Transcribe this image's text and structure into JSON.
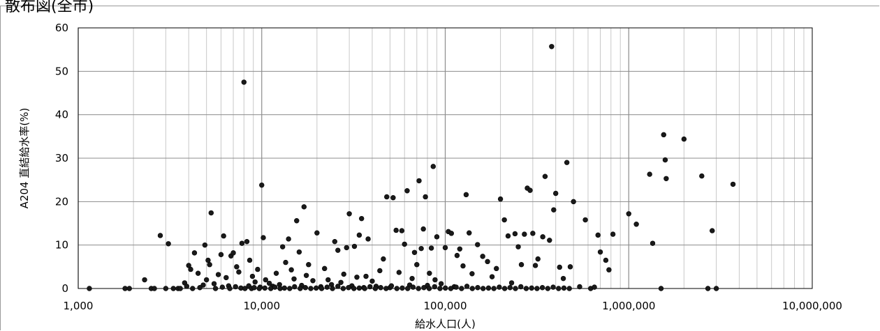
{
  "title": "散布図(全市)",
  "chart_data": {
    "type": "scatter",
    "title": "散布図(全市)",
    "xlabel": "給水人口(人)",
    "ylabel": "A204 直結給水率(%)",
    "x_scale": "log",
    "xlim": [
      1000,
      10000000
    ],
    "ylim": [
      0,
      60
    ],
    "x_ticks": [
      "1,000",
      "10,000",
      "100,000",
      "1,000,000",
      "10,000,000"
    ],
    "y_ticks": [
      "0",
      "10",
      "20",
      "30",
      "40",
      "50",
      "60"
    ],
    "grid": true,
    "legend": "none",
    "marker_color": "#1a1a1a",
    "series": [
      {
        "points": [
          [
            1150,
            0
          ],
          [
            1800,
            0
          ],
          [
            1900,
            0
          ],
          [
            2300,
            2
          ],
          [
            2500,
            0
          ],
          [
            2600,
            0
          ],
          [
            2800,
            12.2
          ],
          [
            3000,
            0
          ],
          [
            3100,
            10.3
          ],
          [
            3300,
            0
          ],
          [
            3500,
            0
          ],
          [
            3800,
            1.3
          ],
          [
            3900,
            0.5
          ],
          [
            4000,
            5.3
          ],
          [
            4100,
            4.4
          ],
          [
            4300,
            8.2
          ],
          [
            4500,
            3.5
          ],
          [
            4800,
            0.8
          ],
          [
            4900,
            10
          ],
          [
            5000,
            2
          ],
          [
            5100,
            6.5
          ],
          [
            5200,
            5.5
          ],
          [
            5300,
            17.4
          ],
          [
            5500,
            1.1
          ],
          [
            5800,
            3.2
          ],
          [
            6000,
            7.8
          ],
          [
            6200,
            12.1
          ],
          [
            6400,
            2.5
          ],
          [
            6600,
            0.6
          ],
          [
            6800,
            7.5
          ],
          [
            7000,
            8.2
          ],
          [
            7300,
            5
          ],
          [
            7500,
            3.8
          ],
          [
            7800,
            10.4
          ],
          [
            8000,
            47.5
          ],
          [
            8300,
            10.8
          ],
          [
            8600,
            6.5
          ],
          [
            8900,
            2.8
          ],
          [
            9200,
            1.5
          ],
          [
            9500,
            4.4
          ],
          [
            9800,
            0.3
          ],
          [
            10000,
            23.8
          ],
          [
            10200,
            11.7
          ],
          [
            10500,
            2
          ],
          [
            11000,
            1.2
          ],
          [
            11500,
            0.5
          ],
          [
            12000,
            3.5
          ],
          [
            12500,
            0.9
          ],
          [
            13000,
            9.6
          ],
          [
            13500,
            6
          ],
          [
            14000,
            11.4
          ],
          [
            14500,
            4.3
          ],
          [
            15000,
            2.2
          ],
          [
            15500,
            15.6
          ],
          [
            16000,
            8.4
          ],
          [
            16500,
            0.7
          ],
          [
            17000,
            18.8
          ],
          [
            17500,
            3
          ],
          [
            18000,
            5.5
          ],
          [
            19000,
            1.8
          ],
          [
            20000,
            12.8
          ],
          [
            21000,
            0.4
          ],
          [
            22000,
            4.6
          ],
          [
            23000,
            2
          ],
          [
            24000,
            0.9
          ],
          [
            25000,
            10.8
          ],
          [
            26000,
            8.8
          ],
          [
            27000,
            1.4
          ],
          [
            28000,
            3.3
          ],
          [
            29000,
            9.4
          ],
          [
            30000,
            17.2
          ],
          [
            31000,
            0.6
          ],
          [
            32000,
            9.7
          ],
          [
            33000,
            2.6
          ],
          [
            34000,
            12.3
          ],
          [
            35000,
            16.1
          ],
          [
            36000,
            0.2
          ],
          [
            37000,
            2.8
          ],
          [
            38000,
            11.4
          ],
          [
            40000,
            1.7
          ],
          [
            42000,
            0.5
          ],
          [
            44000,
            4.1
          ],
          [
            46000,
            6.8
          ],
          [
            48000,
            21.1
          ],
          [
            50000,
            0.2
          ],
          [
            52000,
            20.9
          ],
          [
            54000,
            13.4
          ],
          [
            56000,
            3.7
          ],
          [
            58000,
            13.3
          ],
          [
            60000,
            10.2
          ],
          [
            62000,
            22.5
          ],
          [
            64000,
            0.8
          ],
          [
            66000,
            2.3
          ],
          [
            68000,
            8.3
          ],
          [
            70000,
            5.5
          ],
          [
            72000,
            24.8
          ],
          [
            74000,
            9.2
          ],
          [
            76000,
            13.7
          ],
          [
            78000,
            21.1
          ],
          [
            80000,
            0.7
          ],
          [
            82000,
            3.5
          ],
          [
            84000,
            9.3
          ],
          [
            86000,
            28.1
          ],
          [
            88000,
            2
          ],
          [
            90000,
            11.9
          ],
          [
            95000,
            1.1
          ],
          [
            100000,
            9.4
          ],
          [
            104000,
            13.1
          ],
          [
            108000,
            12.7
          ],
          [
            112000,
            0.4
          ],
          [
            116000,
            7.6
          ],
          [
            120000,
            9.1
          ],
          [
            125000,
            5.2
          ],
          [
            130000,
            21.6
          ],
          [
            135000,
            12.8
          ],
          [
            140000,
            3.4
          ],
          [
            150000,
            10.1
          ],
          [
            160000,
            7.4
          ],
          [
            170000,
            6.2
          ],
          [
            180000,
            2.7
          ],
          [
            190000,
            4.6
          ],
          [
            200000,
            20.6
          ],
          [
            210000,
            15.8
          ],
          [
            220000,
            12.1
          ],
          [
            230000,
            1.3
          ],
          [
            240000,
            12.6
          ],
          [
            250000,
            9.6
          ],
          [
            260000,
            5.5
          ],
          [
            270000,
            12.5
          ],
          [
            280000,
            23.1
          ],
          [
            290000,
            22.6
          ],
          [
            300000,
            12.7
          ],
          [
            310000,
            5.3
          ],
          [
            320000,
            6.8
          ],
          [
            340000,
            11.9
          ],
          [
            350000,
            25.8
          ],
          [
            370000,
            11.1
          ],
          [
            380000,
            55.7
          ],
          [
            390000,
            18.1
          ],
          [
            400000,
            21.9
          ],
          [
            420000,
            4.9
          ],
          [
            440000,
            2.3
          ],
          [
            460000,
            29
          ],
          [
            480000,
            5
          ],
          [
            500000,
            20
          ],
          [
            540000,
            0.4
          ],
          [
            580000,
            15.8
          ],
          [
            620000,
            0
          ],
          [
            650000,
            0.3
          ],
          [
            680000,
            12.3
          ],
          [
            700000,
            8.4
          ],
          [
            750000,
            6.5
          ],
          [
            780000,
            4.3
          ],
          [
            820000,
            12.5
          ],
          [
            1000000,
            17.2
          ],
          [
            1100000,
            14.8
          ],
          [
            1300000,
            26.3
          ],
          [
            1350000,
            10.4
          ],
          [
            1500000,
            0
          ],
          [
            1550000,
            35.4
          ],
          [
            1580000,
            29.6
          ],
          [
            1600000,
            25.3
          ],
          [
            2000000,
            34.4
          ],
          [
            2500000,
            25.9
          ],
          [
            2700000,
            0
          ],
          [
            2850000,
            13.3
          ],
          [
            3000000,
            0
          ],
          [
            3700000,
            24
          ]
        ]
      },
      {
        "name": "",
        "points": [
          [
            3600,
            0
          ],
          [
            4200,
            0
          ],
          [
            4600,
            0.2
          ],
          [
            5600,
            0
          ],
          [
            6100,
            0.3
          ],
          [
            6700,
            0
          ],
          [
            7200,
            0.4
          ],
          [
            7700,
            0.1
          ],
          [
            8100,
            0
          ],
          [
            8500,
            0.6
          ],
          [
            8800,
            0
          ],
          [
            9100,
            0.2
          ],
          [
            9700,
            0
          ],
          [
            10400,
            0.1
          ],
          [
            11200,
            0
          ],
          [
            11800,
            0.3
          ],
          [
            12600,
            0
          ],
          [
            13300,
            0.1
          ],
          [
            14200,
            0
          ],
          [
            15100,
            0.4
          ],
          [
            16200,
            0
          ],
          [
            17300,
            0.2
          ],
          [
            18500,
            0
          ],
          [
            19800,
            0.1
          ],
          [
            21200,
            0
          ],
          [
            22700,
            0.3
          ],
          [
            24300,
            0
          ],
          [
            26000,
            0.5
          ],
          [
            27800,
            0
          ],
          [
            29700,
            0.2
          ],
          [
            31800,
            0
          ],
          [
            34000,
            0.1
          ],
          [
            36400,
            0
          ],
          [
            38900,
            0.4
          ],
          [
            41600,
            0
          ],
          [
            44500,
            0.2
          ],
          [
            47600,
            0
          ],
          [
            50900,
            0.6
          ],
          [
            54500,
            0
          ],
          [
            58300,
            0.1
          ],
          [
            62400,
            0
          ],
          [
            66800,
            0.3
          ],
          [
            71500,
            0
          ],
          [
            76500,
            0.2
          ],
          [
            81800,
            0
          ],
          [
            87500,
            0.4
          ],
          [
            93600,
            0
          ],
          [
            100200,
            0.1
          ],
          [
            107200,
            0
          ],
          [
            114700,
            0.3
          ],
          [
            122700,
            0
          ],
          [
            131300,
            0.5
          ],
          [
            140500,
            0
          ],
          [
            150300,
            0.2
          ],
          [
            160800,
            0
          ],
          [
            172100,
            0.1
          ],
          [
            184100,
            0
          ],
          [
            197000,
            0.3
          ],
          [
            210800,
            0
          ],
          [
            225500,
            0.2
          ],
          [
            241300,
            0
          ],
          [
            258200,
            0.4
          ],
          [
            276300,
            0
          ],
          [
            295600,
            0.1
          ],
          [
            316300,
            0
          ],
          [
            338400,
            0.2
          ],
          [
            362100,
            0
          ],
          [
            387400,
            0.3
          ],
          [
            414500,
            0
          ],
          [
            443500,
            0.1
          ],
          [
            474600,
            0
          ]
        ]
      }
    ]
  }
}
